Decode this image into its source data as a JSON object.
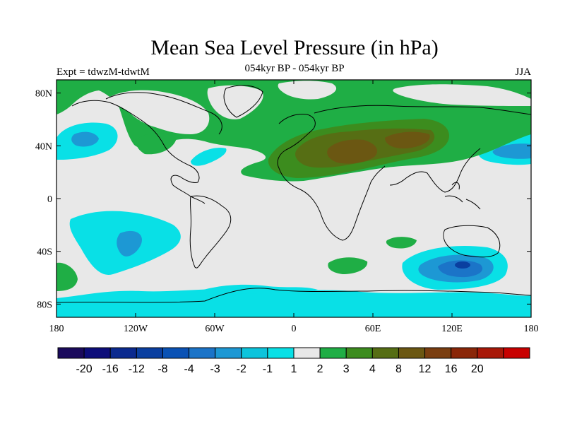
{
  "title": "Mean Sea Level Pressure (in hPa)",
  "subtitle": "054kyr BP - 054kyr BP",
  "left_label": "Expt = tdwzM-tdwtM",
  "right_label": "JJA",
  "lat_ticks": [
    "80N",
    "40N",
    "0",
    "40S",
    "80S"
  ],
  "lon_ticks": [
    "180",
    "120W",
    "60W",
    "0",
    "60E",
    "120E",
    "180"
  ],
  "colorbar": {
    "colors": [
      "#1a0a5c",
      "#0d0d7a",
      "#0b2a8f",
      "#0a3fa0",
      "#0a52b5",
      "#1b74c8",
      "#1d98d4",
      "#0cc4dc",
      "#09e0e6",
      "#e8e8e8",
      "#1fae45",
      "#3c8c1e",
      "#566e14",
      "#6b5712",
      "#7a3e10",
      "#8a2608",
      "#a81808",
      "#c80000"
    ],
    "labels": [
      "-20",
      "-16",
      "-12",
      "-8",
      "-4",
      "-3",
      "-2",
      "-1",
      "1",
      "2",
      "3",
      "4",
      "8",
      "12",
      "16",
      "20"
    ]
  },
  "map_style": {
    "background": "#e8e8e8",
    "cyan": "#09e0e6",
    "light_blue": "#1d98d4",
    "mid_blue": "#1b74c8",
    "dark_blue": "#0a3fa0",
    "green": "#1fae45",
    "dark_green": "#3c8c1e",
    "olive": "#566e14",
    "brown": "#6b5712",
    "coast": "#000000"
  }
}
